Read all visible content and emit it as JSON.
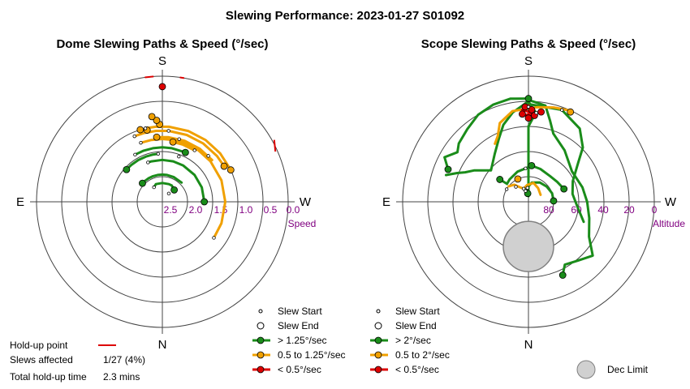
{
  "title": "Slewing Performance: 2023-01-27 S01092",
  "chart_data": [
    {
      "type": "polar",
      "title": "Dome Slewing Paths & Speed (°/sec)",
      "compass": {
        "top": "S",
        "bottom": "N",
        "left": "E",
        "right": "W"
      },
      "radial_axis": {
        "label": "Speed",
        "ticks": [
          "2.5",
          "2.0",
          "1.5",
          "1.0",
          "0.5",
          "0.0"
        ],
        "center_value": 3.0,
        "outer_value": 0.0
      },
      "legend": [
        {
          "label": "Slew Start",
          "marker": "small-circle"
        },
        {
          "label": "Slew End",
          "marker": "circle"
        },
        {
          "label": "> 1.25°/sec",
          "color": "#1a8c1a"
        },
        {
          "label": "0.5 to 1.25°/sec",
          "color": "#f0a000"
        },
        {
          "label": "< 0.5°/sec",
          "color": "#dd0000"
        }
      ],
      "paths": [
        {
          "color": "#1a8c1a",
          "pts": [
            [
              132,
              1.85
            ],
            [
              140,
              1.85
            ],
            [
              150,
              1.85
            ],
            [
              160,
              1.85
            ],
            [
              168,
              1.85
            ],
            [
              175,
              1.85
            ]
          ]
        },
        {
          "color": "#1a8c1a",
          "pts": [
            [
              205,
              1.7
            ],
            [
              190,
              1.7
            ],
            [
              180,
              1.7
            ],
            [
              170,
              1.7
            ],
            [
              160,
              1.7
            ],
            [
              150,
              1.7
            ]
          ]
        },
        {
          "color": "#1a8c1a",
          "pts": [
            [
              225,
              2.35
            ],
            [
              205,
              2.35
            ],
            [
              190,
              2.35
            ],
            [
              180,
              2.35
            ],
            [
              170,
              2.35
            ],
            [
              160,
              2.35
            ],
            [
              150,
              2.35
            ],
            [
              140,
              2.35
            ],
            [
              133,
              2.35
            ]
          ]
        },
        {
          "color": "#1a8c1a",
          "pts": [
            [
              270,
              2.0
            ],
            [
              250,
              2.0
            ],
            [
              230,
              2.0
            ],
            [
              210,
              2.0
            ],
            [
              195,
              2.0
            ],
            [
              180,
              2.0
            ],
            [
              165,
              2.0
            ],
            [
              160,
              2.0
            ]
          ]
        },
        {
          "color": "#1a8c1a",
          "pts": [
            [
              225,
              2.6
            ],
            [
              210,
              2.55
            ],
            [
              200,
              2.55
            ],
            [
              180,
              2.55
            ],
            [
              160,
              2.55
            ],
            [
              150,
              2.6
            ]
          ]
        },
        {
          "color": "#f0a000",
          "pts": [
            [
              160,
              1.5
            ],
            [
              170,
              1.5
            ],
            [
              180,
              1.5
            ],
            [
              190,
              1.5
            ],
            [
              200,
              1.5
            ],
            [
              215,
              1.5
            ],
            [
              230,
              1.5
            ],
            [
              250,
              1.5
            ],
            [
              270,
              1.5
            ],
            [
              290,
              1.5
            ],
            [
              305,
              1.5
            ]
          ]
        },
        {
          "color": "#f0a000",
          "pts": [
            [
              240,
              1.3
            ],
            [
              230,
              1.3
            ],
            [
              215,
              1.3
            ],
            [
              200,
              1.3
            ],
            [
              185,
              1.3
            ],
            [
              175,
              1.3
            ],
            [
              165,
              1.3
            ],
            [
              157,
              1.3
            ]
          ]
        },
        {
          "color": "#f0a000",
          "pts": [
            [
              245,
              1.2
            ],
            [
              230,
              1.2
            ],
            [
              215,
              1.2
            ],
            [
              200,
              1.2
            ],
            [
              185,
              1.2
            ],
            [
              175,
              1.2
            ],
            [
              168,
              1.2
            ]
          ]
        },
        {
          "color": "#f0a000",
          "pts": [
            [
              175,
              1.45
            ],
            [
              185,
              1.45
            ],
            [
              200,
              1.45
            ],
            [
              215,
              1.45
            ],
            [
              230,
              1.45
            ]
          ]
        },
        {
          "color": "#f0a000",
          "pts": [
            [
              190,
              1.55
            ],
            [
              200,
              1.55
            ],
            [
              212,
              1.55
            ]
          ]
        }
      ],
      "starts": [
        [
          175,
          1.85
        ],
        [
          150,
          1.7
        ],
        [
          160,
          2.0
        ],
        [
          150,
          2.6
        ],
        [
          160,
          1.5
        ],
        [
          225,
          1.45
        ],
        [
          212,
          1.55
        ],
        [
          167,
          1.2
        ],
        [
          157,
          1.3
        ],
        [
          305,
          1.5
        ],
        [
          218,
          2.75
        ],
        [
          200,
          1.85
        ],
        [
          195,
          1.45
        ],
        [
          185,
          1.3
        ]
      ],
      "ends": [
        {
          "pt": [
            132,
            1.85
          ],
          "color": "#1a8c1a"
        },
        {
          "pt": [
            205,
            1.7
          ],
          "color": "#1a8c1a"
        },
        {
          "pt": [
            133,
            2.35
          ],
          "color": "#1a8c1a"
        },
        {
          "pt": [
            270,
            2.0
          ],
          "color": "#1a8c1a"
        },
        {
          "pt": [
            225,
            2.6
          ],
          "color": "#1a8c1a"
        },
        {
          "pt": [
            240,
            1.3
          ],
          "color": "#f0a000"
        },
        {
          "pt": [
            245,
            1.2
          ],
          "color": "#f0a000"
        },
        {
          "pt": [
            190,
            1.55
          ],
          "color": "#f0a000"
        },
        {
          "pt": [
            175,
            1.45
          ],
          "color": "#f0a000"
        },
        {
          "pt": [
            168,
            1.25
          ],
          "color": "#f0a000"
        },
        {
          "pt": [
            163,
            1.2
          ],
          "color": "#f0a000"
        },
        {
          "pt": [
            178,
            1.15
          ],
          "color": "#f0a000"
        },
        {
          "pt": [
            176,
            1.05
          ],
          "color": "#f0a000"
        },
        {
          "pt": [
            173,
            0.95
          ],
          "color": "#f0a000"
        },
        {
          "pt": [
            180,
            0.25
          ],
          "color": "#dd0000"
        }
      ],
      "holdups": [
        [
          [
            172,
            0.0
          ],
          [
            176,
            0.0
          ]
        ],
        [
          [
            188,
            0.0
          ],
          [
            190,
            0.0
          ]
        ],
        [
          [
            241,
            -0.05
          ],
          [
            246,
            0.05
          ]
        ]
      ],
      "holdup_info": {
        "label": "Hold-up point",
        "slews_affected_label": "Slews affected",
        "slews_affected": "1/27 (4%)",
        "total_label": "Total hold-up time",
        "total": "2.3 mins",
        "color": "#dd0000"
      }
    },
    {
      "type": "polar",
      "title": "Scope Slewing Paths & Speed (°/sec)",
      "compass": {
        "top": "S",
        "bottom": "N",
        "left": "E",
        "right": "W"
      },
      "radial_axis": {
        "label": "Altitude",
        "ticks": [
          "80",
          "60",
          "40",
          "20",
          "0"
        ],
        "center_value": 90,
        "outer_value": 0
      },
      "legend": [
        {
          "label": "Slew Start",
          "marker": "small-circle"
        },
        {
          "label": "Slew End",
          "marker": "circle"
        },
        {
          "label": "> 2°/sec",
          "color": "#1a8c1a"
        },
        {
          "label": "0.5 to 2°/sec",
          "color": "#f0a000"
        },
        {
          "label": "< 0.5°/sec",
          "color": "#dd0000"
        }
      ],
      "dec_limit": {
        "label": "Dec Limit",
        "center": [
          0,
          58
        ],
        "radius_deg": 18,
        "color": "#d0d0d0"
      },
      "paths": [
        {
          "color": "#1a8c1a",
          "pts": [
            [
              180,
              16
            ],
            [
              170,
              15
            ],
            [
              160,
              16
            ],
            [
              150,
              18
            ],
            [
              140,
              22
            ],
            [
              130,
              25
            ],
            [
              125,
              28
            ],
            [
              118,
              22
            ],
            [
              112,
              28
            ]
          ]
        },
        {
          "color": "#1a8c1a",
          "pts": [
            [
              180,
              17
            ],
            [
              190,
              20
            ],
            [
              195,
              30
            ],
            [
              200,
              38
            ],
            [
              215,
              45
            ],
            [
              235,
              52
            ],
            [
              255,
              50
            ],
            [
              270,
              48
            ],
            [
              285,
              45
            ],
            [
              300,
              40
            ],
            [
              310,
              30
            ],
            [
              320,
              35
            ],
            [
              330,
              38
            ],
            [
              335,
              32
            ]
          ]
        },
        {
          "color": "#1a8c1a",
          "pts": [
            [
              180,
              18
            ],
            [
              182,
              22
            ],
            [
              185,
              26
            ],
            [
              183,
              30
            ],
            [
              180,
              36
            ],
            [
              180,
              45
            ],
            [
              180,
              60
            ],
            [
              180,
              80
            ],
            [
              180,
              86
            ]
          ]
        },
        {
          "color": "#1a8c1a",
          "pts": [
            [
              180,
              18
            ],
            [
              170,
              25
            ],
            [
              162,
              32
            ],
            [
              155,
              40
            ],
            [
              145,
              48
            ],
            [
              130,
              55
            ],
            [
              120,
              45
            ],
            [
              115,
              40
            ],
            [
              112,
              35
            ],
            [
              108,
              28
            ]
          ]
        },
        {
          "color": "#1a8c1a",
          "pts": [
            [
              250,
              63
            ],
            [
              235,
              65
            ],
            [
              220,
              66
            ],
            [
              200,
              65
            ],
            [
              185,
              64
            ],
            [
              175,
              66
            ],
            [
              160,
              67
            ],
            [
              140,
              69
            ],
            [
              130,
              70
            ],
            [
              128,
              64
            ]
          ]
        },
        {
          "color": "#1a8c1a",
          "pts": [
            [
              268,
              72
            ],
            [
              250,
              72
            ],
            [
              230,
              73
            ],
            [
              210,
              74
            ],
            [
              190,
              76
            ],
            [
              175,
              80
            ],
            [
              165,
              82
            ]
          ]
        },
        {
          "color": "#1a8c1a",
          "pts": [
            [
              180,
              20
            ],
            [
              200,
              20
            ],
            [
              215,
              26
            ],
            [
              225,
              35
            ],
            [
              232,
              45
            ],
            [
              245,
              55
            ],
            [
              260,
              58
            ],
            [
              275,
              55
            ],
            [
              290,
              48
            ]
          ]
        },
        {
          "color": "#f0a000",
          "pts": [
            [
              205,
              18
            ],
            [
              195,
              20
            ],
            [
              185,
              22
            ],
            [
              170,
              24
            ],
            [
              160,
              30
            ],
            [
              155,
              38
            ],
            [
              150,
              42
            ]
          ]
        },
        {
          "color": "#f0a000",
          "pts": [
            [
              240,
              80
            ],
            [
              215,
              78
            ],
            [
              195,
              76
            ],
            [
              175,
              78
            ],
            [
              160,
              80
            ],
            [
              150,
              78
            ],
            [
              140,
              74
            ],
            [
              128,
              72
            ]
          ]
        },
        {
          "color": "#dd0000",
          "pts": [
            [
              180,
              21
            ],
            [
              176,
              24
            ],
            [
              182,
              26
            ],
            [
              178,
              28
            ],
            [
              184,
              27
            ]
          ]
        }
      ],
      "starts": [
        [
          175,
          66
        ],
        [
          160,
          80
        ],
        [
          200,
          20
        ],
        [
          180,
          22
        ],
        [
          185,
          26
        ],
        [
          120,
          72
        ],
        [
          140,
          76
        ],
        [
          165,
          82
        ],
        [
          176,
          80
        ]
      ],
      "ends": [
        {
          "pt": [
            112,
            28
          ],
          "color": "#1a8c1a"
        },
        {
          "pt": [
            335,
            32
          ],
          "color": "#1a8c1a"
        },
        {
          "pt": [
            180,
            16
          ],
          "color": "#1a8c1a"
        },
        {
          "pt": [
            205,
            19
          ],
          "color": "#f0a000"
        },
        {
          "pt": [
            128,
            64
          ],
          "color": "#1a8c1a"
        },
        {
          "pt": [
            250,
            63
          ],
          "color": "#1a8c1a"
        },
        {
          "pt": [
            268,
            72
          ],
          "color": "#1a8c1a"
        },
        {
          "pt": [
            185,
            64
          ],
          "color": "#1a8c1a"
        },
        {
          "pt": [
            175,
            84
          ],
          "color": "#1a8c1a"
        },
        {
          "pt": [
            155,
            72
          ],
          "color": "#f0a000"
        },
        {
          "pt": [
            178,
            22
          ],
          "color": "#dd0000"
        },
        {
          "pt": [
            182,
            24
          ],
          "color": "#dd0000"
        },
        {
          "pt": [
            176,
            27
          ],
          "color": "#dd0000"
        },
        {
          "pt": [
            184,
            28
          ],
          "color": "#dd0000"
        },
        {
          "pt": [
            180,
            30
          ],
          "color": "#dd0000"
        },
        {
          "pt": [
            188,
            25
          ],
          "color": "#dd0000"
        }
      ]
    }
  ]
}
